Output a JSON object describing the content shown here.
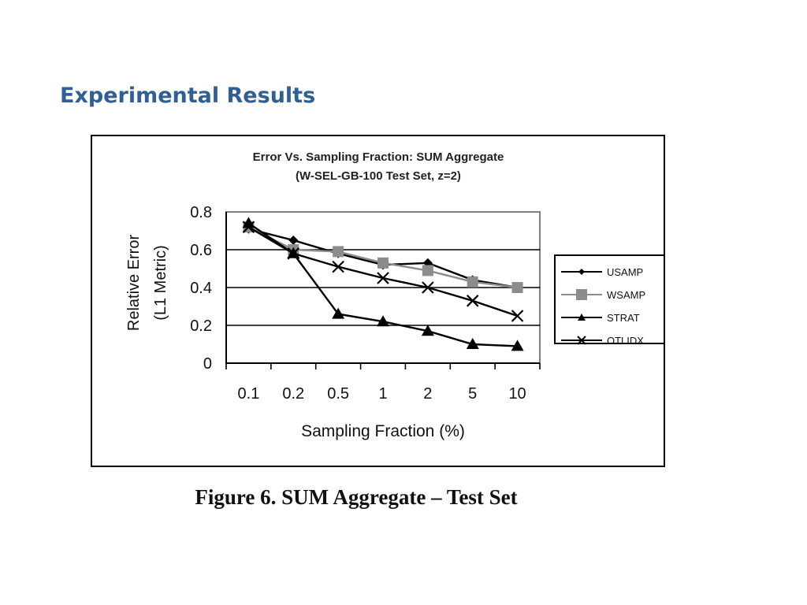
{
  "slide": {
    "title": "Experimental Results",
    "caption": "Figure 6. SUM Aggregate – Test Set"
  },
  "colors": {
    "title": "#2f5f93",
    "gridline": "#000000",
    "plot_border": "#808080"
  },
  "chart_data": {
    "type": "line",
    "title": "Error Vs. Sampling Fraction: SUM Aggregate",
    "subtitle": "(W-SEL-GB-100 Test Set, z=2)",
    "xlabel": "Sampling Fraction (%)",
    "ylabel": "Relative Error",
    "ylabel2": "(L1 Metric)",
    "categories": [
      "0.1",
      "0.2",
      "0.5",
      "1",
      "2",
      "5",
      "10"
    ],
    "ylim": [
      0,
      0.8
    ],
    "yticks": [
      "0",
      "0.2",
      "0.4",
      "0.6",
      "0.8"
    ],
    "grid": true,
    "legend_position": "right",
    "series": [
      {
        "name": "USAMP",
        "marker": "diamond",
        "color": "#000000",
        "values": [
          0.71,
          0.65,
          0.58,
          0.52,
          0.53,
          0.44,
          0.4
        ]
      },
      {
        "name": "WSAMP",
        "marker": "square",
        "color": "#8c8c8c",
        "values": [
          0.72,
          0.6,
          0.59,
          0.53,
          0.49,
          0.43,
          0.4
        ]
      },
      {
        "name": "STRAT",
        "marker": "triangle",
        "color": "#000000",
        "values": [
          0.74,
          0.58,
          0.26,
          0.22,
          0.17,
          0.1,
          0.09
        ]
      },
      {
        "name": "OTLIDX",
        "marker": "x",
        "color": "#000000",
        "values": [
          0.72,
          0.58,
          0.51,
          0.45,
          0.4,
          0.33,
          0.25
        ]
      }
    ]
  }
}
